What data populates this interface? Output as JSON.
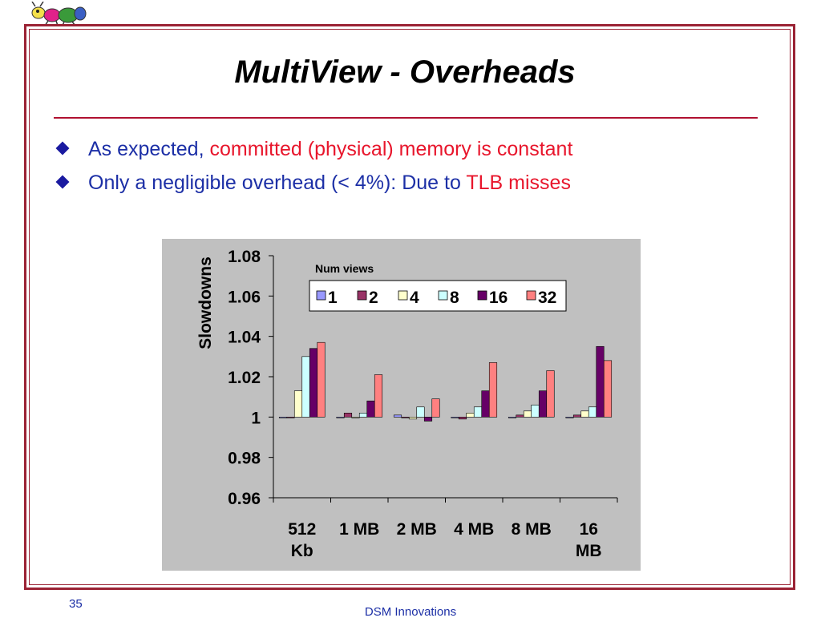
{
  "slide": {
    "title": "MultiView - Overheads",
    "bullets": [
      {
        "plain": "As expected, ",
        "highlight": "committed (physical) memory is constant"
      },
      {
        "plain": "Only a negligible overhead (< 4%): Due to ",
        "highlight": "TLB misses"
      }
    ],
    "page_number": "35",
    "footer": "DSM Innovations",
    "logo_icon": "ant-logo-icon"
  },
  "colors": {
    "frame": "#9b2335",
    "bullet_text": "#1c2fa6",
    "highlight": "#e8162c",
    "plot_bg": "#c0c0c0"
  },
  "chart_data": {
    "type": "bar",
    "title": "",
    "xlabel": "",
    "ylabel": "Slowdowns",
    "ylim": [
      0.96,
      1.08
    ],
    "yticks": [
      "1.08",
      "1.06",
      "1.04",
      "1.02",
      "1",
      "0.98",
      "0.96"
    ],
    "ytick_values": [
      1.08,
      1.06,
      1.04,
      1.02,
      1.0,
      0.98,
      0.96
    ],
    "categories": [
      [
        "512",
        "Kb"
      ],
      [
        "1 MB"
      ],
      [
        "2 MB"
      ],
      [
        "4 MB"
      ],
      [
        "8 MB"
      ],
      [
        "16",
        "MB"
      ]
    ],
    "legend_title": "Num views",
    "legend_position": "top-right",
    "grid": false,
    "series": [
      {
        "name": "1",
        "color": "#9999ff",
        "values": [
          1.0,
          1.0,
          1.001,
          1.0,
          1.0,
          1.0
        ]
      },
      {
        "name": "2",
        "color": "#993366",
        "values": [
          1.0,
          1.002,
          1.0,
          0.999,
          1.001,
          1.001
        ]
      },
      {
        "name": "4",
        "color": "#ffffcc",
        "values": [
          1.013,
          1.0,
          0.999,
          1.002,
          1.003,
          1.003
        ]
      },
      {
        "name": "8",
        "color": "#ccffff",
        "values": [
          1.03,
          1.002,
          1.005,
          1.005,
          1.006,
          1.005
        ]
      },
      {
        "name": "16",
        "color": "#660066",
        "values": [
          1.034,
          1.008,
          0.998,
          1.013,
          1.013,
          1.035
        ]
      },
      {
        "name": "32",
        "color": "#ff8080",
        "values": [
          1.037,
          1.021,
          1.009,
          1.027,
          1.023,
          1.028
        ]
      }
    ]
  }
}
